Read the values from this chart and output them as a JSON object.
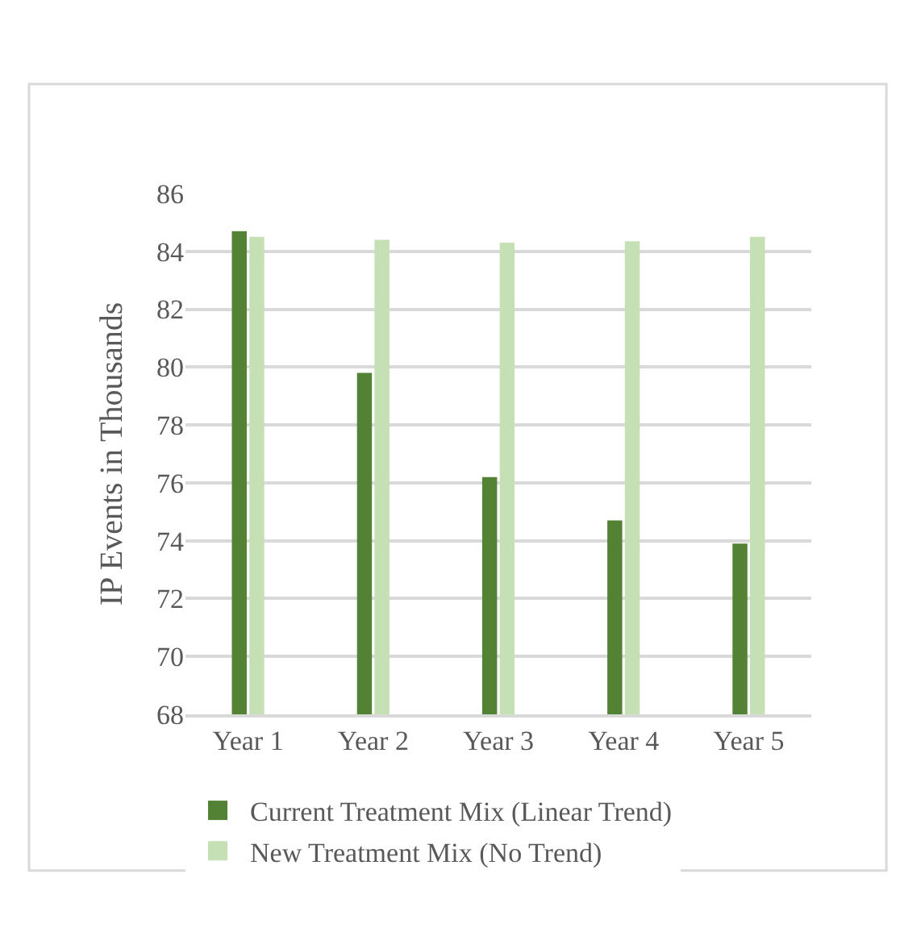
{
  "chart_data": {
    "type": "bar",
    "ylabel": "IP Events in Thousands",
    "categories": [
      "Year 1",
      "Year 2",
      "Year 3",
      "Year 4",
      "Year 5"
    ],
    "series": [
      {
        "name": "Current Treatment Mix (Linear Trend)",
        "color": "#548235",
        "values": [
          84.7,
          79.8,
          76.2,
          74.7,
          73.9
        ]
      },
      {
        "name": "New Treatment Mix (No Trend)",
        "color": "#c5e0b4",
        "values": [
          84.5,
          84.4,
          84.3,
          84.35,
          84.5
        ]
      }
    ],
    "ylim": [
      68,
      86
    ],
    "yticks": [
      68,
      70,
      72,
      74,
      76,
      78,
      80,
      82,
      84,
      86
    ],
    "grid": "y",
    "legend": "bottom"
  }
}
